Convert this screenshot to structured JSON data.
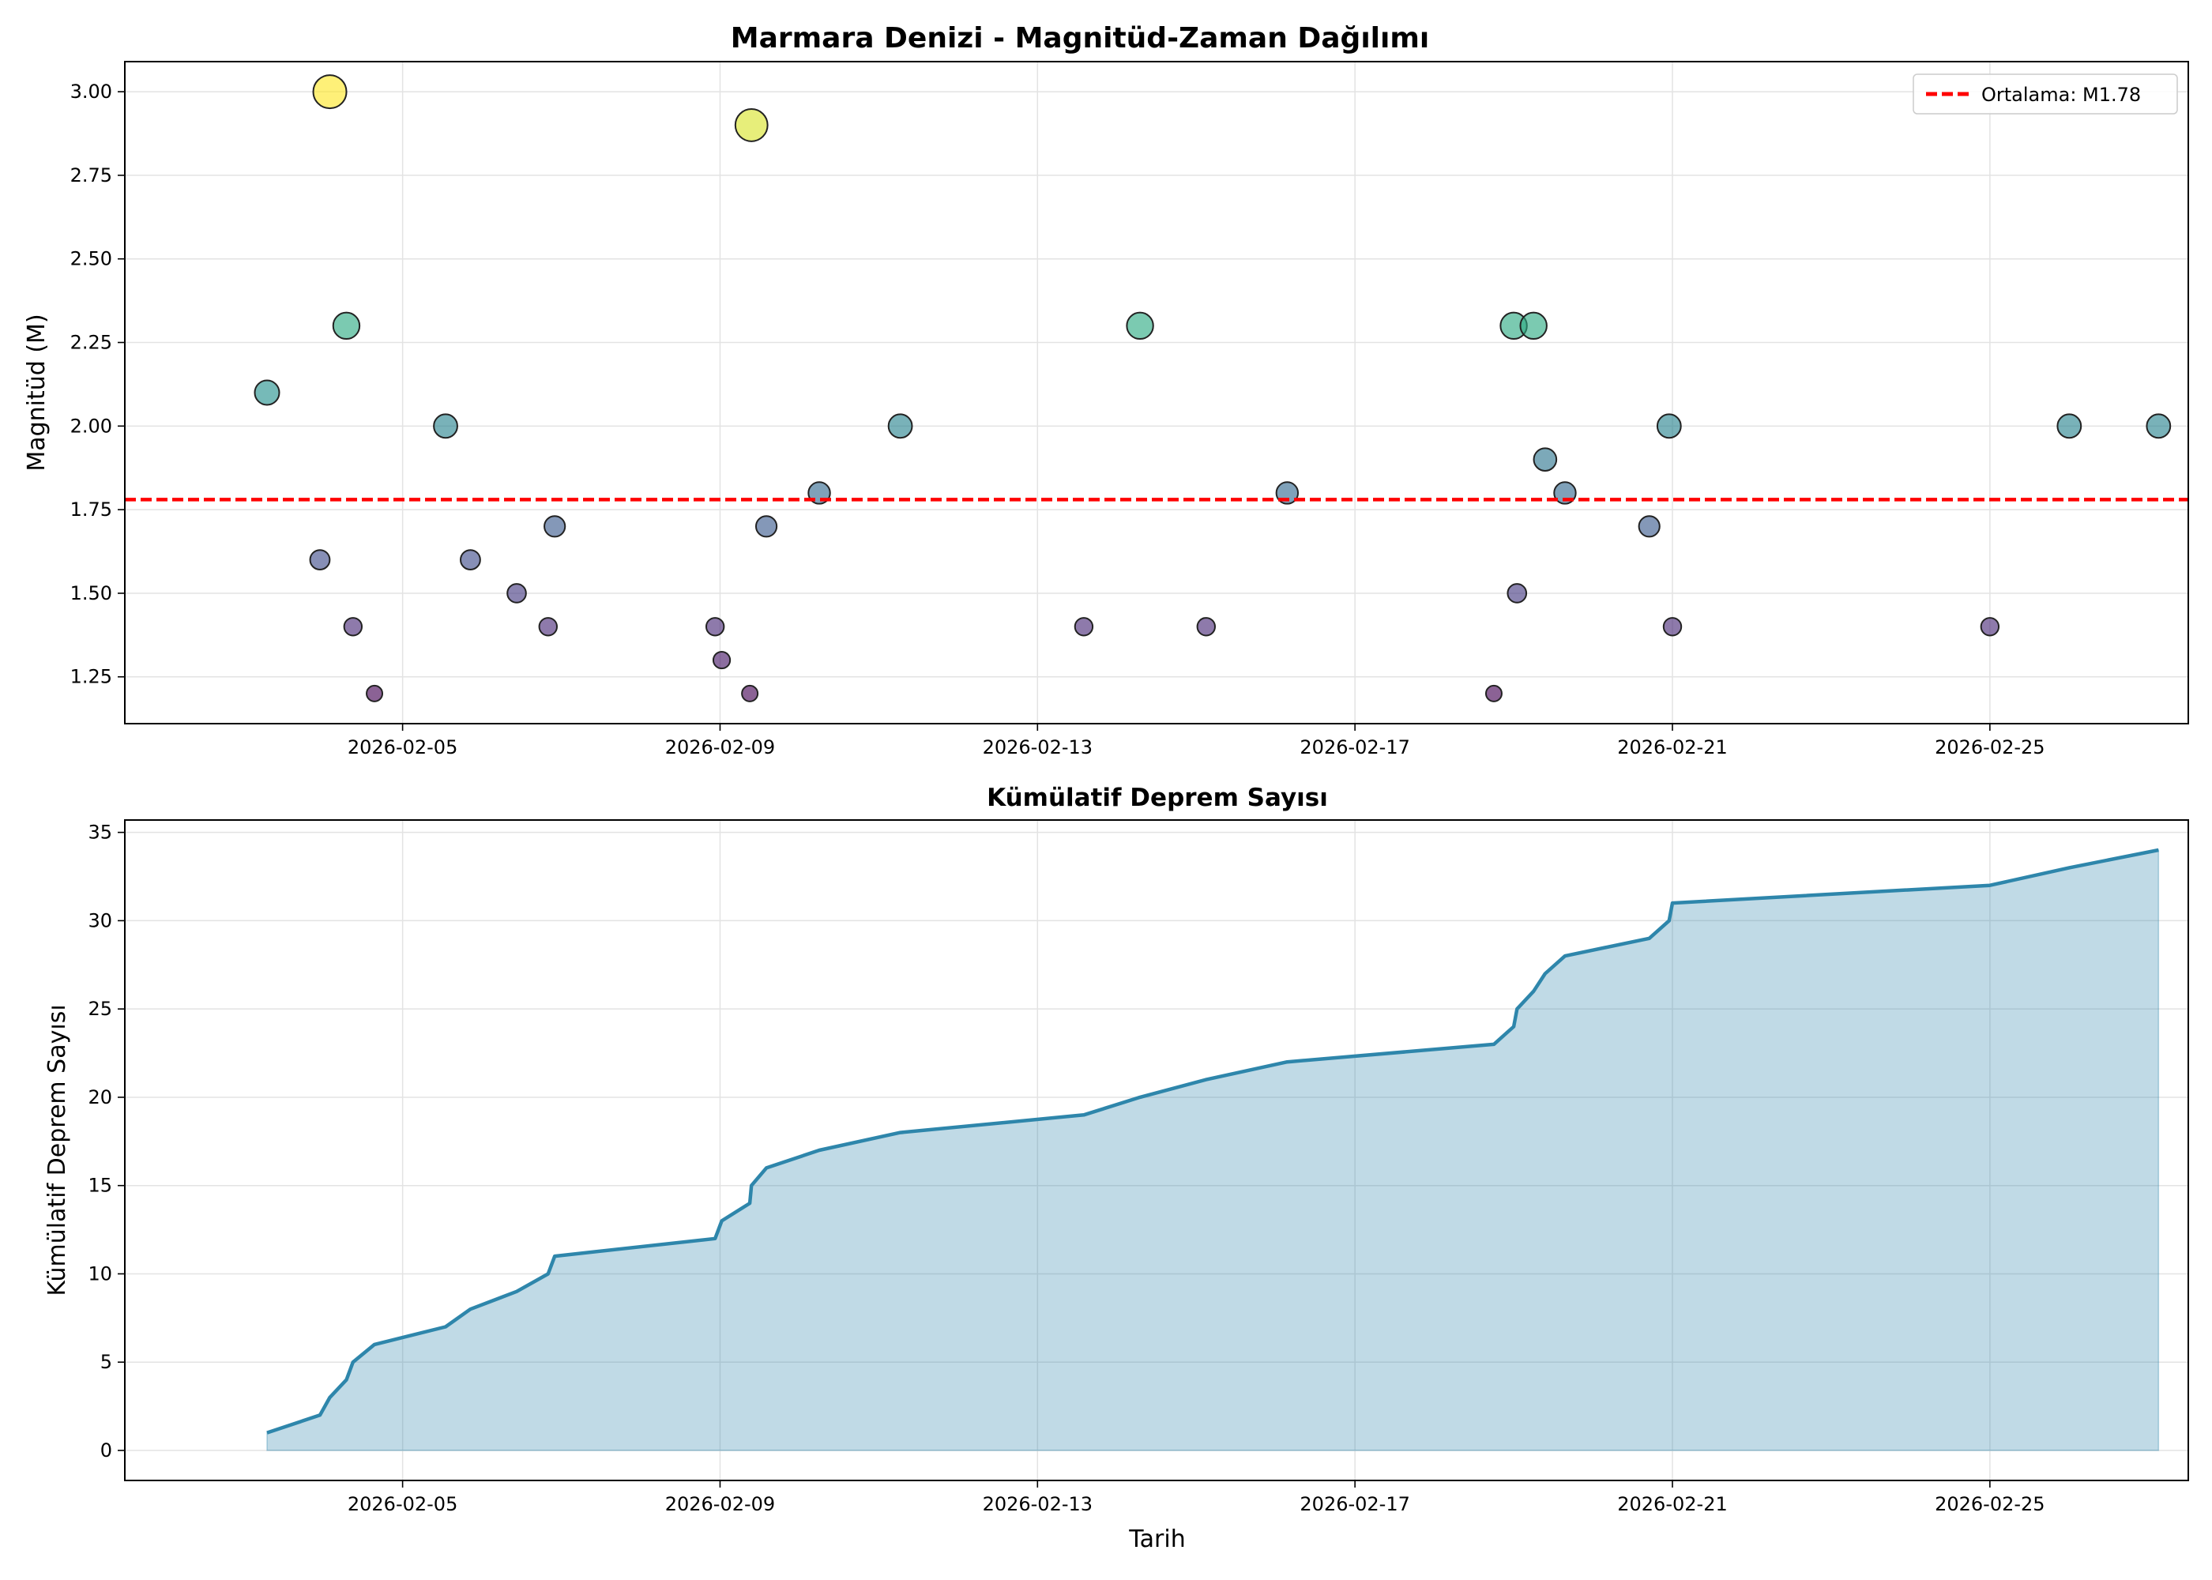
{
  "figure_title": "",
  "chart_data": [
    {
      "type": "scatter",
      "title": "Marmara Denizi - Magnitüd-Zaman Dağılımı",
      "xlabel": "",
      "ylabel": "Magnitüd (M)",
      "x_axis": "date",
      "xlim": [
        "2026-02-01T12:00",
        "2026-02-27T12:00"
      ],
      "ylim": [
        1.11,
        3.09
      ],
      "x_ticks": [
        "2026-02-05",
        "2026-02-09",
        "2026-02-13",
        "2026-02-17",
        "2026-02-21",
        "2026-02-25"
      ],
      "y_ticks": [
        "1.25",
        "1.50",
        "1.75",
        "2.00",
        "2.25",
        "2.50",
        "2.75",
        "3.00"
      ],
      "y_tick_values": [
        1.25,
        1.5,
        1.75,
        2.0,
        2.25,
        2.5,
        2.75,
        3.0
      ],
      "grid": true,
      "legend_position": "top-right",
      "colormap": "viridis",
      "color_range": [
        1.2,
        3.0
      ],
      "mean_line": {
        "value": 1.78,
        "label": "Ortalama: M1.78",
        "color": "#ff0000",
        "style": "dashed"
      },
      "points": [
        {
          "x": "2026-02-03T07:00",
          "y": 2.1
        },
        {
          "x": "2026-02-03T23:00",
          "y": 1.6
        },
        {
          "x": "2026-02-04T02:00",
          "y": 3.0
        },
        {
          "x": "2026-02-04T07:00",
          "y": 2.3
        },
        {
          "x": "2026-02-04T09:00",
          "y": 1.4
        },
        {
          "x": "2026-02-04T15:30",
          "y": 1.2
        },
        {
          "x": "2026-02-05T13:00",
          "y": 2.0
        },
        {
          "x": "2026-02-05T20:30",
          "y": 1.6
        },
        {
          "x": "2026-02-06T10:30",
          "y": 1.5
        },
        {
          "x": "2026-02-06T20:00",
          "y": 1.4
        },
        {
          "x": "2026-02-06T22:00",
          "y": 1.7
        },
        {
          "x": "2026-02-08T22:30",
          "y": 1.4
        },
        {
          "x": "2026-02-09T00:30",
          "y": 1.3
        },
        {
          "x": "2026-02-09T09:00",
          "y": 1.2
        },
        {
          "x": "2026-02-09T09:30",
          "y": 2.9
        },
        {
          "x": "2026-02-09T14:00",
          "y": 1.7
        },
        {
          "x": "2026-02-10T06:00",
          "y": 1.8
        },
        {
          "x": "2026-02-11T06:30",
          "y": 2.0
        },
        {
          "x": "2026-02-13T14:00",
          "y": 1.4
        },
        {
          "x": "2026-02-14T07:00",
          "y": 2.3
        },
        {
          "x": "2026-02-15T03:00",
          "y": 1.4
        },
        {
          "x": "2026-02-16T03:30",
          "y": 1.8
        },
        {
          "x": "2026-02-18T18:00",
          "y": 1.2
        },
        {
          "x": "2026-02-19T00:00",
          "y": 2.3
        },
        {
          "x": "2026-02-19T01:00",
          "y": 1.5
        },
        {
          "x": "2026-02-19T06:00",
          "y": 2.3
        },
        {
          "x": "2026-02-19T09:30",
          "y": 1.9
        },
        {
          "x": "2026-02-19T15:30",
          "y": 1.8
        },
        {
          "x": "2026-02-20T17:00",
          "y": 1.7
        },
        {
          "x": "2026-02-20T23:00",
          "y": 2.0
        },
        {
          "x": "2026-02-21T00:00",
          "y": 1.4
        },
        {
          "x": "2026-02-25T00:00",
          "y": 1.4
        },
        {
          "x": "2026-02-26T00:00",
          "y": 2.0
        },
        {
          "x": "2026-02-27T03:00",
          "y": 2.0
        }
      ]
    },
    {
      "type": "area",
      "title": "Kümülatif Deprem Sayısı",
      "xlabel": "Tarih",
      "ylabel": "Kümülatif Deprem Sayısı",
      "x_axis": "date",
      "xlim": [
        "2026-02-01T12:00",
        "2026-02-27T12:00"
      ],
      "ylim": [
        -1.7,
        35.7
      ],
      "x_ticks": [
        "2026-02-05",
        "2026-02-09",
        "2026-02-13",
        "2026-02-17",
        "2026-02-21",
        "2026-02-25"
      ],
      "y_ticks": [
        "0",
        "5",
        "10",
        "15",
        "20",
        "25",
        "30",
        "35"
      ],
      "y_tick_values": [
        0,
        5,
        10,
        15,
        20,
        25,
        30,
        35
      ],
      "grid": true,
      "line_color": "#2e86ab",
      "fill_color": "#2e86ab",
      "x": [
        "2026-02-03T07:00",
        "2026-02-03T23:00",
        "2026-02-04T02:00",
        "2026-02-04T07:00",
        "2026-02-04T09:00",
        "2026-02-04T15:30",
        "2026-02-05T13:00",
        "2026-02-05T20:30",
        "2026-02-06T10:30",
        "2026-02-06T20:00",
        "2026-02-06T22:00",
        "2026-02-08T22:30",
        "2026-02-09T00:30",
        "2026-02-09T09:00",
        "2026-02-09T09:30",
        "2026-02-09T14:00",
        "2026-02-10T06:00",
        "2026-02-11T06:30",
        "2026-02-13T14:00",
        "2026-02-14T07:00",
        "2026-02-15T03:00",
        "2026-02-16T03:30",
        "2026-02-18T18:00",
        "2026-02-19T00:00",
        "2026-02-19T01:00",
        "2026-02-19T06:00",
        "2026-02-19T09:30",
        "2026-02-19T15:30",
        "2026-02-20T17:00",
        "2026-02-20T23:00",
        "2026-02-21T00:00",
        "2026-02-25T00:00",
        "2026-02-26T00:00",
        "2026-02-27T03:00"
      ],
      "y": [
        1,
        2,
        3,
        4,
        5,
        6,
        7,
        8,
        9,
        10,
        11,
        12,
        13,
        14,
        15,
        16,
        17,
        18,
        19,
        20,
        21,
        22,
        23,
        24,
        25,
        26,
        27,
        28,
        29,
        30,
        31,
        32,
        33,
        34
      ]
    }
  ]
}
